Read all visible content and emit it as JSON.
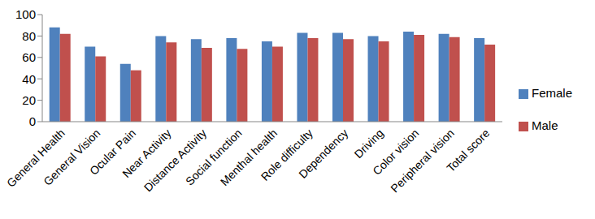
{
  "chart_data": {
    "type": "bar",
    "categories": [
      "General Health",
      "General Vision",
      "Ocular Pain",
      "Near Activity",
      "Distance Activity",
      "Social function",
      "Menthal health",
      "Role difficulty",
      "Dependency",
      "Driving",
      "Color vision",
      "Peripheral vision",
      "Total score"
    ],
    "series": [
      {
        "name": "Female",
        "color": "#4f81bd",
        "values": [
          88,
          70,
          54,
          80,
          77,
          78,
          75,
          83,
          83,
          80,
          84,
          82,
          78
        ]
      },
      {
        "name": "Male",
        "color": "#c0504d",
        "values": [
          82,
          61,
          48,
          74,
          69,
          68,
          70,
          78,
          77,
          75,
          81,
          79,
          72
        ]
      }
    ],
    "ylim": [
      0,
      100
    ],
    "yticks": [
      0,
      20,
      40,
      60,
      80,
      100
    ],
    "grid": false,
    "legend": "right"
  }
}
